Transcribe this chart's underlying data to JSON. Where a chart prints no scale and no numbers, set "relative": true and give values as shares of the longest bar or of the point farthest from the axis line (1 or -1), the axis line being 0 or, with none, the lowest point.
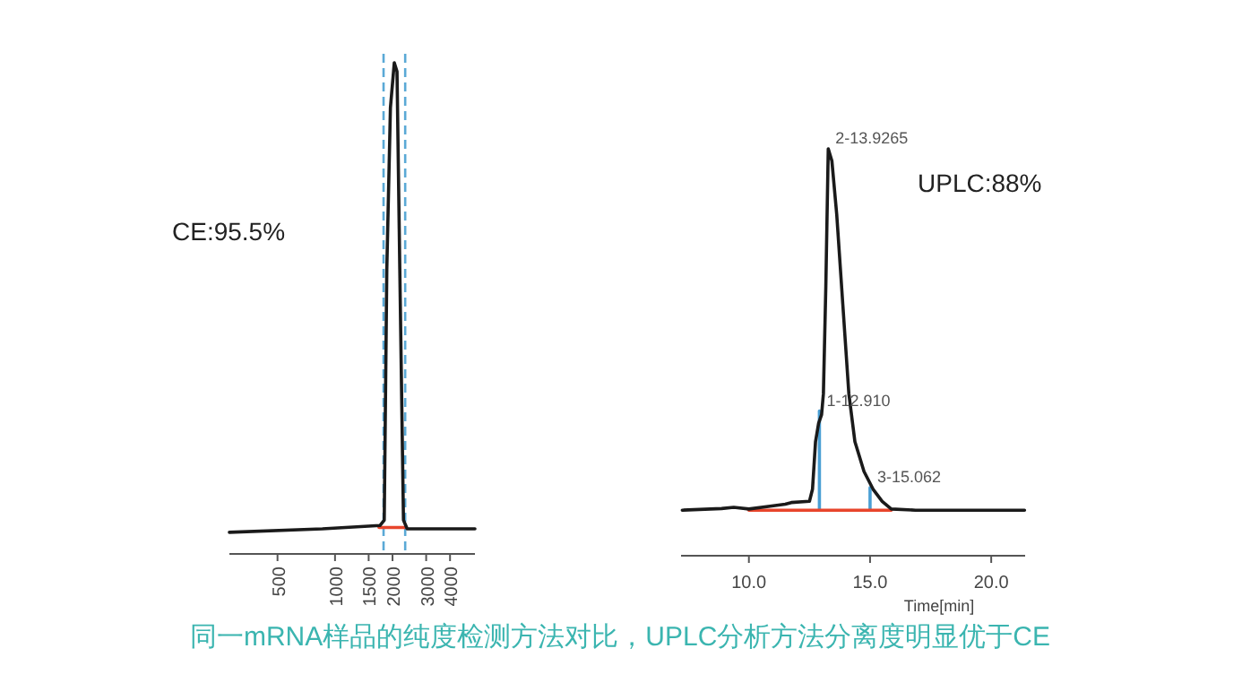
{
  "chart_data": [
    {
      "type": "line",
      "relative": true,
      "log": "x",
      "tick_labels": "x",
      "xlim": [
        280,
        5400
      ],
      "xticks": [
        500,
        1000,
        1500,
        2000,
        3000,
        4000
      ],
      "series": [
        {
          "color": "#1a1a1a",
          "x": [
            280,
            859,
            1718,
            1810,
            1867,
            1950,
            2043,
            2111,
            2183,
            2282,
            2386,
            5400
          ],
          "values": [
            0.037,
            0.044,
            0.051,
            0.062,
            0.577,
            0.908,
            1.0,
            0.982,
            0.577,
            0.062,
            0.044,
            0.044
          ]
        },
        {
          "color": "#e8452c",
          "x": [
            1700,
            2330
          ],
          "values": [
            0.047,
            0.047
          ]
        }
      ],
      "ref_lines": [
        {
          "axis": "x",
          "value": 1795,
          "color": "#5aa9d6",
          "line_style": "dashed"
        },
        {
          "axis": "x",
          "value": 2330,
          "color": "#5aa9d6",
          "line_style": "dashed"
        }
      ],
      "annotations": [
        "CE:95.5%"
      ]
    },
    {
      "type": "line",
      "relative": true,
      "tick_labels": "x",
      "xlim": [
        7.2,
        21.4
      ],
      "xticks": [
        {
          "value": 10,
          "label": "10.0"
        },
        {
          "value": 15,
          "label": "15.0"
        },
        {
          "value": 20,
          "label": "20.0"
        }
      ],
      "xlabel": "Time[min]",
      "series": [
        {
          "color": "#1a1a1a",
          "x": [
            7.25,
            8.875,
            9.375,
            10,
            10.875,
            11.5,
            11.75,
            12.5,
            12.625,
            12.75,
            12.875,
            13.0,
            13.075,
            13.175,
            13.275,
            13.425,
            13.625,
            13.875,
            14.125,
            14.375,
            14.75,
            15.125,
            15.5,
            15.875,
            16.875,
            21.375
          ],
          "values": [
            0.104,
            0.108,
            0.111,
            0.107,
            0.114,
            0.119,
            0.123,
            0.126,
            0.156,
            0.274,
            0.319,
            0.341,
            0.393,
            0.659,
            1.0,
            0.97,
            0.837,
            0.615,
            0.393,
            0.274,
            0.2,
            0.156,
            0.126,
            0.107,
            0.104,
            0.104
          ]
        },
        {
          "color": "#e8452c",
          "x": [
            10,
            15.875
          ],
          "values": [
            0.104,
            0.104
          ]
        },
        {
          "color": "#4a9fd4",
          "x": [
            12.91,
            12.91
          ],
          "values": [
            0.104,
            0.35
          ]
        },
        {
          "color": "#4a9fd4",
          "x": [
            15.0,
            15.0
          ],
          "values": [
            0.104,
            0.16
          ]
        }
      ],
      "annotations": [
        "UPLC:88%",
        {
          "text": "2-13.9265",
          "x": 13.275,
          "y": 1.0
        },
        {
          "text": "1-12.910",
          "x": 12.91,
          "y": 0.35
        },
        {
          "text": "3-15.062",
          "x": 15.0,
          "y": 0.16
        },
        "同一mRNA样品的纯度检测方法对比，UPLC分析方法分离度明显优于CE"
      ]
    }
  ]
}
